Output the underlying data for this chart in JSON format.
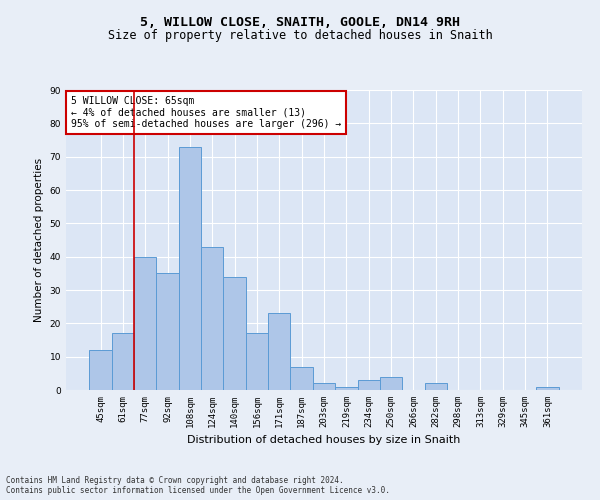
{
  "title1": "5, WILLOW CLOSE, SNAITH, GOOLE, DN14 9RH",
  "title2": "Size of property relative to detached houses in Snaith",
  "xlabel": "Distribution of detached houses by size in Snaith",
  "ylabel": "Number of detached properties",
  "categories": [
    "45sqm",
    "61sqm",
    "77sqm",
    "92sqm",
    "108sqm",
    "124sqm",
    "140sqm",
    "156sqm",
    "171sqm",
    "187sqm",
    "203sqm",
    "219sqm",
    "234sqm",
    "250sqm",
    "266sqm",
    "282sqm",
    "298sqm",
    "313sqm",
    "329sqm",
    "345sqm",
    "361sqm"
  ],
  "values": [
    12,
    17,
    40,
    35,
    73,
    43,
    34,
    17,
    23,
    7,
    2,
    1,
    3,
    4,
    0,
    2,
    0,
    0,
    0,
    0,
    1
  ],
  "bar_color": "#aec6e8",
  "bar_edge_color": "#5b9bd5",
  "background_color": "#e8eef7",
  "plot_bg_color": "#dce6f5",
  "grid_color": "#ffffff",
  "vline_x": 1.5,
  "vline_color": "#cc0000",
  "annotation_text": "5 WILLOW CLOSE: 65sqm\n← 4% of detached houses are smaller (13)\n95% of semi-detached houses are larger (296) →",
  "annotation_box_color": "#ffffff",
  "annotation_box_edge": "#cc0000",
  "ylim": [
    0,
    90
  ],
  "yticks": [
    0,
    10,
    20,
    30,
    40,
    50,
    60,
    70,
    80,
    90
  ],
  "footer": "Contains HM Land Registry data © Crown copyright and database right 2024.\nContains public sector information licensed under the Open Government Licence v3.0.",
  "title1_fontsize": 9.5,
  "title2_fontsize": 8.5,
  "xlabel_fontsize": 8,
  "ylabel_fontsize": 7.5,
  "tick_fontsize": 6.5,
  "annotation_fontsize": 7,
  "footer_fontsize": 5.5
}
